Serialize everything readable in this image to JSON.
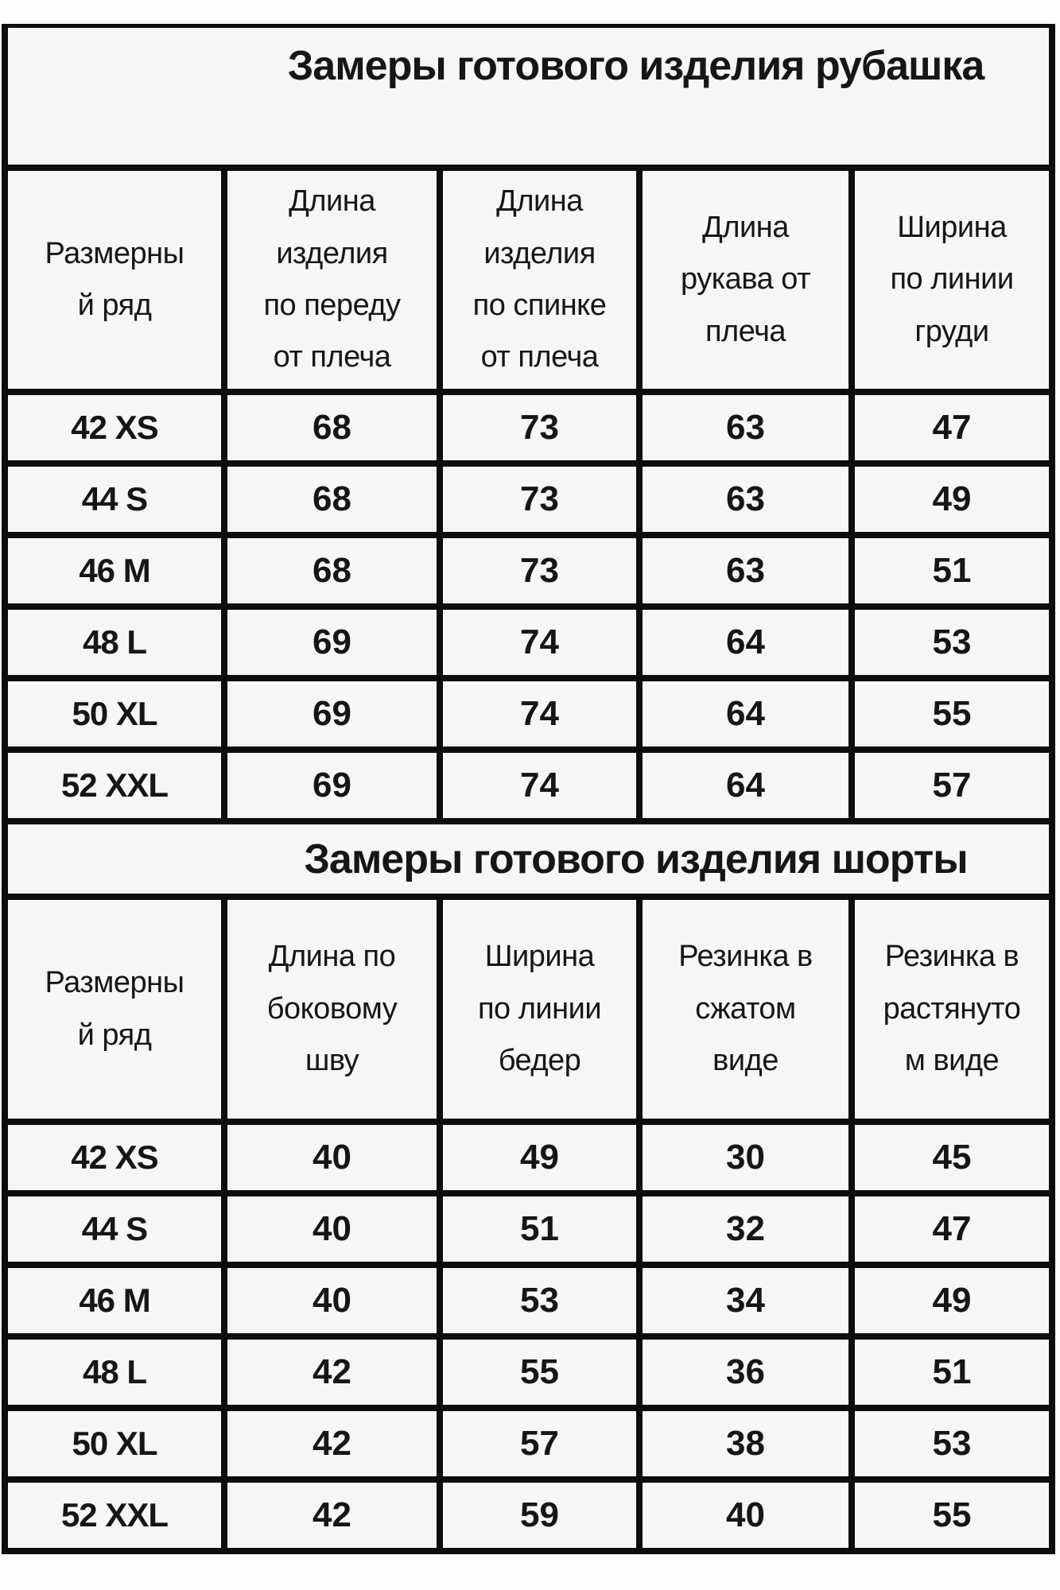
{
  "colors": {
    "border": "#0d0d0d",
    "cell_bg": "#f6f6f4",
    "page_bg": "#fdfdfc",
    "text": "#161616"
  },
  "shirt_table": {
    "title": "Замеры готового изделия рубашка",
    "columns": [
      "Размерны\nй ряд",
      "Длина\nизделия\nпо переду\nот плеча",
      "Длина\nизделия\nпо спинке\nот плеча",
      "Длина\nрукава от\nплеча",
      "Ширина\nпо линии\nгруди"
    ],
    "rows": [
      {
        "size": "42 XS",
        "values": [
          "68",
          "73",
          "63",
          "47"
        ]
      },
      {
        "size": "44 S",
        "values": [
          "68",
          "73",
          "63",
          "49"
        ]
      },
      {
        "size": "46 M",
        "values": [
          "68",
          "73",
          "63",
          "51"
        ]
      },
      {
        "size": "48 L",
        "values": [
          "69",
          "74",
          "64",
          "53"
        ]
      },
      {
        "size": "50 XL",
        "values": [
          "69",
          "74",
          "64",
          "55"
        ]
      },
      {
        "size": "52 XXL",
        "values": [
          "69",
          "74",
          "64",
          "57"
        ]
      }
    ]
  },
  "shorts_table": {
    "title": "Замеры готового изделия шорты",
    "columns": [
      "Размерны\nй ряд",
      "Длина по\nбоковому\nшву",
      "Ширина\nпо линии\nбедер",
      "Резинка в\nсжатом\nвиде",
      "Резинка в\nрастянуто\nм виде"
    ],
    "rows": [
      {
        "size": "42 XS",
        "values": [
          "40",
          "49",
          "30",
          "45"
        ]
      },
      {
        "size": "44 S",
        "values": [
          "40",
          "51",
          "32",
          "47"
        ]
      },
      {
        "size": "46 M",
        "values": [
          "40",
          "53",
          "34",
          "49"
        ]
      },
      {
        "size": "48 L",
        "values": [
          "42",
          "55",
          "36",
          "51"
        ]
      },
      {
        "size": "50 XL",
        "values": [
          "42",
          "57",
          "38",
          "53"
        ]
      },
      {
        "size": "52 XXL",
        "values": [
          "42",
          "59",
          "40",
          "55"
        ]
      }
    ]
  }
}
